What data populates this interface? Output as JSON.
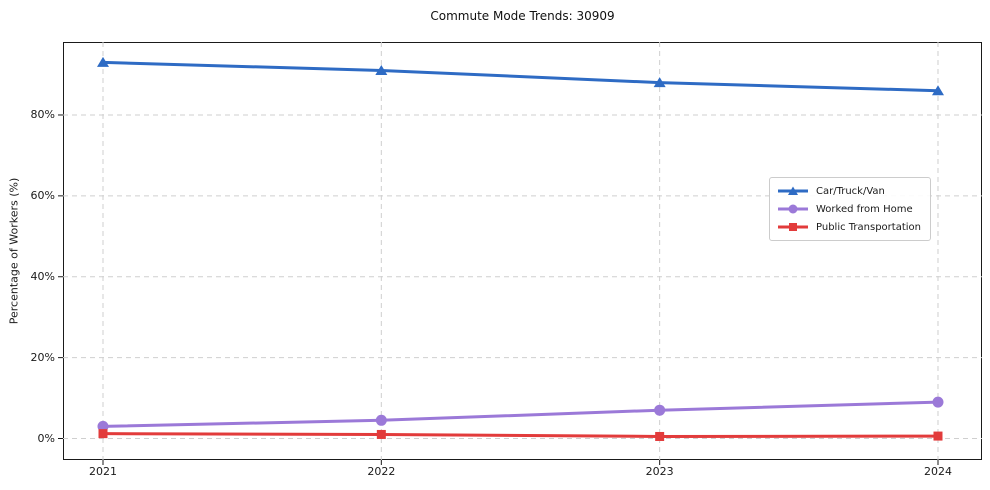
{
  "title": "Commute Mode Trends: 30909",
  "chart_data": {
    "type": "line",
    "title": "Commute Mode Trends: 30909",
    "xlabel": "",
    "ylabel": "Percentage of Workers (%)",
    "categories": [
      "2021",
      "2022",
      "2023",
      "2024"
    ],
    "y_tick_values": [
      0,
      20,
      40,
      60,
      80
    ],
    "y_tick_labels": [
      "0%",
      "20%",
      "40%",
      "60%",
      "80%"
    ],
    "ylim": [
      -6,
      98
    ],
    "grid": true,
    "grid_style": "dashed",
    "legend_position": "center-right",
    "series": [
      {
        "name": "Car/Truck/Van",
        "color": "#2e6bc4",
        "marker": "triangle",
        "values": [
          93,
          91,
          88,
          86
        ]
      },
      {
        "name": "Worked from Home",
        "color": "#9b79d8",
        "marker": "circle",
        "values": [
          3,
          4.5,
          7,
          9
        ]
      },
      {
        "name": "Public Transportation",
        "color": "#e23b3b",
        "marker": "square",
        "values": [
          1.2,
          1.0,
          0.5,
          0.6
        ]
      }
    ],
    "colors": {
      "axis": "#1a1a1a",
      "grid": "#cfcfcf",
      "background": "#ffffff"
    }
  }
}
